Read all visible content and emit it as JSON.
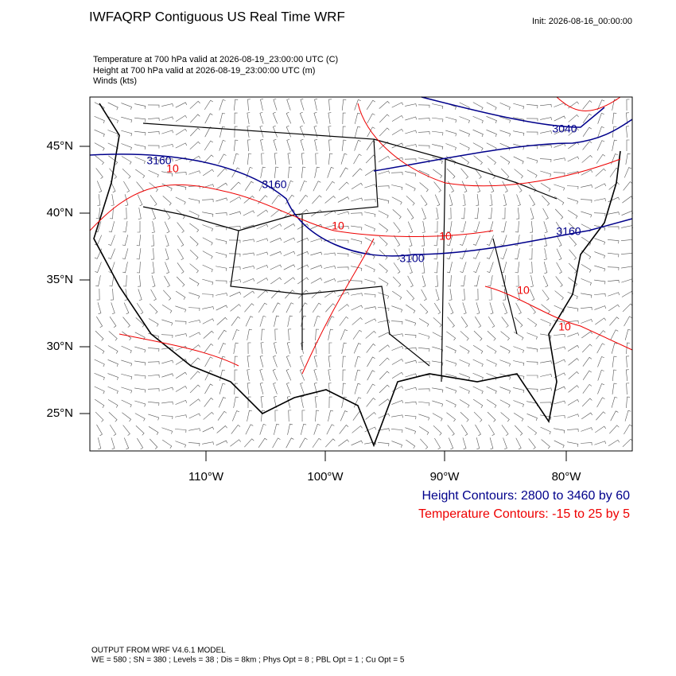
{
  "header": {
    "title": "IWFAQRP Contiguous US Real Time WRF",
    "init": "Init: 2026-08-16_00:00:00"
  },
  "fields": [
    "Temperature at 700 hPa valid at 2026-08-19_23:00:00 UTC   (C)",
    "Height at 700 hPa valid at 2026-08-19_23:00:00 UTC   (m)",
    "Winds   (kts)"
  ],
  "map": {
    "lat_ticks": [
      "45°N",
      "40°N",
      "35°N",
      "30°N",
      "25°N"
    ],
    "lon_ticks": [
      "110°W",
      "100°W",
      "90°W",
      "80°W"
    ],
    "height_labels": [
      "3160",
      "3160",
      "3040",
      "3160",
      "3100"
    ],
    "temp_labels": [
      "10",
      "10",
      "10",
      "10",
      "10"
    ]
  },
  "legend": {
    "height": "Height Contours: 2800 to 3460 by 60",
    "temperature": "Temperature Contours: -15 to 25 by 5"
  },
  "footer": [
    "OUTPUT FROM WRF V4.6.1 MODEL",
    "WE = 580 ; SN = 380 ; Levels = 38 ; Dis = 8km ; Phys Opt = 8 ; PBL Opt = 1 ; Cu Opt = 5"
  ]
}
